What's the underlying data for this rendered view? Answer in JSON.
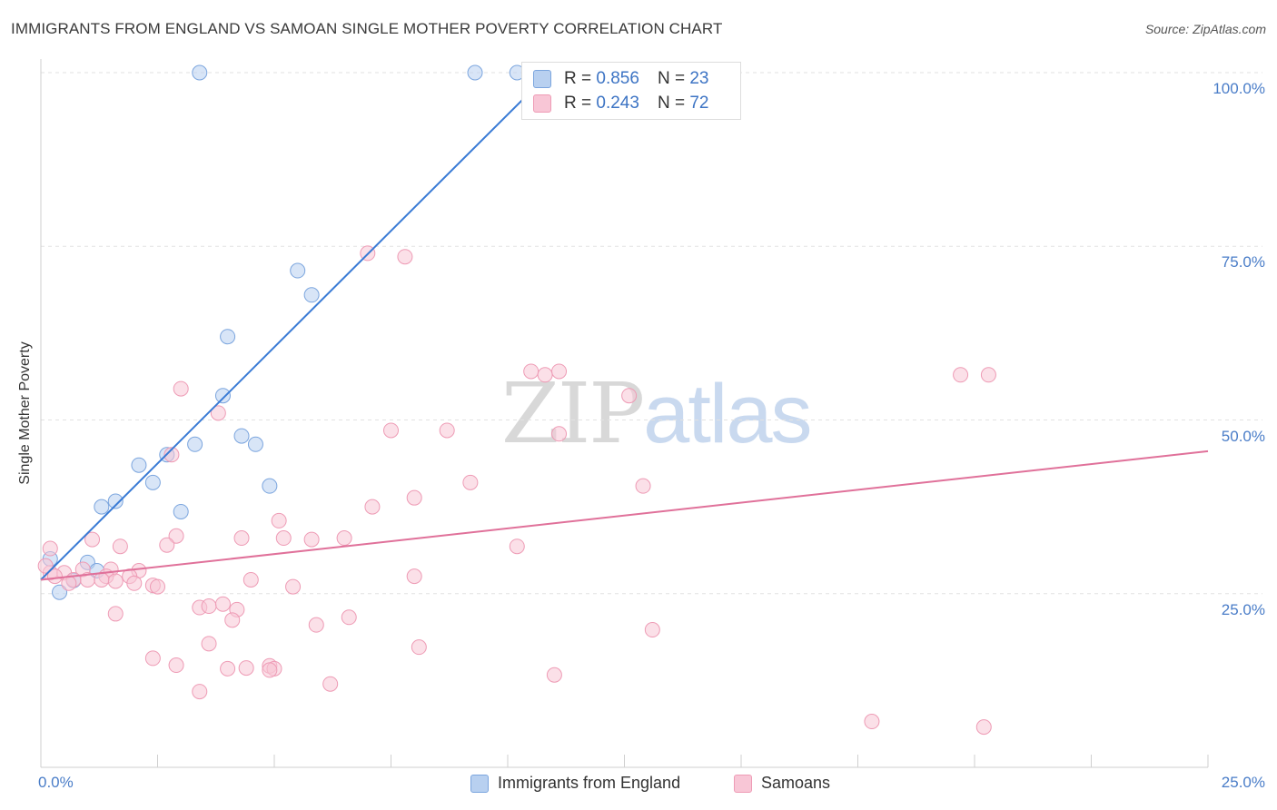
{
  "title": "IMMIGRANTS FROM ENGLAND VS SAMOAN SINGLE MOTHER POVERTY CORRELATION CHART",
  "source": "Source: ZipAtlas.com",
  "watermark": {
    "zip": "ZIP",
    "atlas": "atlas"
  },
  "colors": {
    "blue_fill": "#b8d0f0",
    "blue_stroke": "#7ba5de",
    "blue_line": "#3a7bd5",
    "pink_fill": "#f8c6d6",
    "pink_stroke": "#ee9bb5",
    "pink_line": "#e0719a",
    "tick_text": "#4a7dc8"
  },
  "stats": [
    {
      "r_label": "R =",
      "r": "0.856",
      "n_label": "N =",
      "n": "23",
      "series": "blue"
    },
    {
      "r_label": "R =",
      "r": "0.243",
      "n_label": "N =",
      "n": "72",
      "series": "pink"
    }
  ],
  "legend": [
    {
      "label": "Immigrants from England",
      "series": "blue"
    },
    {
      "label": "Samoans",
      "series": "pink"
    }
  ],
  "chart_data": {
    "type": "scatter",
    "xlabel": "",
    "ylabel": "Single Mother Poverty",
    "xlim": [
      0,
      25
    ],
    "ylim": [
      0,
      100
    ],
    "x_ticks": [
      "0.0%",
      "25.0%"
    ],
    "y_ticks": [
      "100.0%",
      "75.0%",
      "50.0%",
      "25.0%"
    ],
    "grid": true,
    "legend_position": "bottom",
    "series": [
      {
        "name": "Immigrants from England",
        "color": "blue",
        "trend": {
          "x": [
            0.0,
            10.9
          ],
          "y": [
            27.0,
            100.0
          ]
        },
        "points": [
          [
            3.4,
            100
          ],
          [
            9.3,
            100
          ],
          [
            10.2,
            100
          ],
          [
            12.8,
            100
          ],
          [
            5.5,
            71.5
          ],
          [
            5.8,
            68.0
          ],
          [
            4.0,
            62.0
          ],
          [
            3.9,
            53.5
          ],
          [
            2.7,
            45.0
          ],
          [
            3.3,
            46.5
          ],
          [
            4.3,
            47.7
          ],
          [
            4.6,
            46.5
          ],
          [
            2.1,
            43.5
          ],
          [
            2.4,
            41.0
          ],
          [
            4.9,
            40.5
          ],
          [
            1.6,
            38.3
          ],
          [
            1.3,
            37.5
          ],
          [
            3.0,
            36.8
          ],
          [
            1.0,
            29.5
          ],
          [
            1.2,
            28.3
          ],
          [
            0.7,
            26.9
          ],
          [
            0.4,
            25.2
          ],
          [
            0.2,
            30.0
          ]
        ]
      },
      {
        "name": "Samoans",
        "color": "pink",
        "trend": {
          "x": [
            0.0,
            25.0
          ],
          "y": [
            27.0,
            45.5
          ]
        },
        "points": [
          [
            7.0,
            74.0
          ],
          [
            7.8,
            73.5
          ],
          [
            10.5,
            57.0
          ],
          [
            10.8,
            56.5
          ],
          [
            11.1,
            57.0
          ],
          [
            19.7,
            56.5
          ],
          [
            20.3,
            56.5
          ],
          [
            3.0,
            54.5
          ],
          [
            12.6,
            53.5
          ],
          [
            3.8,
            51.0
          ],
          [
            7.5,
            48.5
          ],
          [
            8.7,
            48.5
          ],
          [
            2.8,
            45.0
          ],
          [
            9.2,
            41.0
          ],
          [
            12.9,
            40.5
          ],
          [
            8.0,
            38.8
          ],
          [
            7.1,
            37.5
          ],
          [
            5.1,
            35.5
          ],
          [
            2.9,
            33.3
          ],
          [
            4.3,
            33.0
          ],
          [
            5.2,
            33.0
          ],
          [
            5.8,
            32.8
          ],
          [
            6.5,
            33.0
          ],
          [
            1.1,
            32.8
          ],
          [
            1.7,
            31.8
          ],
          [
            2.7,
            32.0
          ],
          [
            10.2,
            31.8
          ],
          [
            0.2,
            31.5
          ],
          [
            2.1,
            28.3
          ],
          [
            1.5,
            28.5
          ],
          [
            0.9,
            28.5
          ],
          [
            0.2,
            28.0
          ],
          [
            0.5,
            28.0
          ],
          [
            1.4,
            27.5
          ],
          [
            1.9,
            27.5
          ],
          [
            8.0,
            27.5
          ],
          [
            4.5,
            27.0
          ],
          [
            1.0,
            27.0
          ],
          [
            0.7,
            27.0
          ],
          [
            1.6,
            26.8
          ],
          [
            2.0,
            26.5
          ],
          [
            2.4,
            26.2
          ],
          [
            2.5,
            26.0
          ],
          [
            0.6,
            26.5
          ],
          [
            5.4,
            26.0
          ],
          [
            1.3,
            27.0
          ],
          [
            3.4,
            23.0
          ],
          [
            3.6,
            23.2
          ],
          [
            3.9,
            23.5
          ],
          [
            4.2,
            22.7
          ],
          [
            1.6,
            22.1
          ],
          [
            4.1,
            21.2
          ],
          [
            6.6,
            21.6
          ],
          [
            5.9,
            20.5
          ],
          [
            13.1,
            19.8
          ],
          [
            3.6,
            17.8
          ],
          [
            8.1,
            17.3
          ],
          [
            2.4,
            15.7
          ],
          [
            2.9,
            14.7
          ],
          [
            4.4,
            14.3
          ],
          [
            4.9,
            14.6
          ],
          [
            4.0,
            14.2
          ],
          [
            5.0,
            14.2
          ],
          [
            4.9,
            14.0
          ],
          [
            11.0,
            13.3
          ],
          [
            6.2,
            12.0
          ],
          [
            3.4,
            10.9
          ],
          [
            17.8,
            6.6
          ],
          [
            20.2,
            5.8
          ],
          [
            11.1,
            48.0
          ],
          [
            0.1,
            29.0
          ],
          [
            0.3,
            27.5
          ]
        ]
      }
    ]
  }
}
